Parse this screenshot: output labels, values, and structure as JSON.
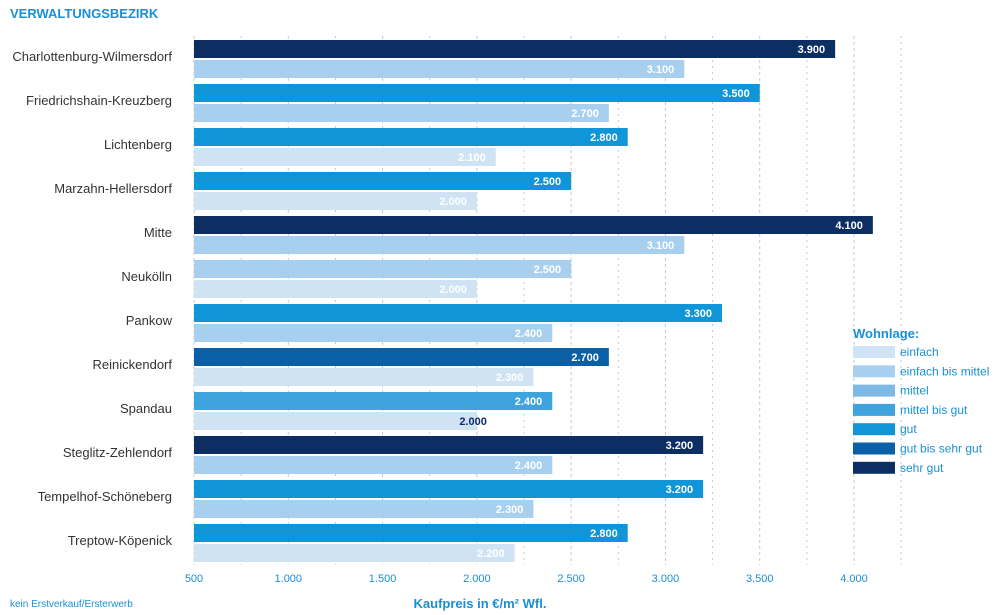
{
  "header": "VERWALTUNGSBEZIRK",
  "footnote": "kein Erstverkauf/Ersterwerb",
  "chart_data": {
    "type": "bar",
    "orientation": "horizontal",
    "title": "",
    "ylabel": "VERWALTUNGSBEZIRK",
    "xlabel": "Kaufpreis in €/m² Wfl.",
    "xlim": [
      500,
      4000
    ],
    "xticks": [
      "500",
      "1.000",
      "1.500",
      "2.000",
      "2.500",
      "3.000",
      "3.500",
      "4.000"
    ],
    "grid": true,
    "legend_position": "right",
    "categories": [
      "Charlottenburg-Wilmersdorf",
      "Friedrichshain-Kreuzberg",
      "Lichtenberg",
      "Marzahn-Hellersdorf",
      "Mitte",
      "Neukölln",
      "Pankow",
      "Reinickendorf",
      "Spandau",
      "Steglitz-Zehlendorf",
      "Tempelhof-Schöneberg",
      "Treptow-Köpenick"
    ],
    "series": [
      {
        "name": "upper bar",
        "values": [
          3900,
          3500,
          2800,
          2500,
          4100,
          2500,
          3300,
          2700,
          2400,
          3200,
          3200,
          2800
        ],
        "labels": [
          "3.900",
          "3.500",
          "2.800",
          "2.500",
          "4.100",
          "2.500",
          "3.300",
          "2.700",
          "2.400",
          "3.200",
          "3.200",
          "2.800"
        ],
        "wohnlage": [
          "sehr gut",
          "gut",
          "gut",
          "gut",
          "sehr gut",
          "einfach bis mittel",
          "gut",
          "gut bis sehr gut",
          "mittel bis gut",
          "sehr gut",
          "gut",
          "gut"
        ]
      },
      {
        "name": "lower bar",
        "values": [
          3100,
          2700,
          2100,
          2000,
          3100,
          2000,
          2400,
          2300,
          2000,
          2400,
          2300,
          2200
        ],
        "labels": [
          "3.100",
          "2.700",
          "2.100",
          "2.000",
          "3.100",
          "2.000",
          "2.400",
          "2.300",
          "2.000",
          "2.400",
          "2.300",
          "2.200"
        ],
        "wohnlage": [
          "einfach bis mittel",
          "einfach bis mittel",
          "einfach",
          "einfach",
          "einfach bis mittel",
          "einfach",
          "einfach bis mittel",
          "einfach",
          "einfach",
          "einfach bis mittel",
          "einfach bis mittel",
          "einfach"
        ]
      }
    ],
    "legend": {
      "title": "Wohnlage:",
      "items": [
        {
          "label": "einfach",
          "color": "#cfe3f4"
        },
        {
          "label": "einfach bis mittel",
          "color": "#a8d0ee"
        },
        {
          "label": "mittel",
          "color": "#7dbbe6"
        },
        {
          "label": "mittel bis gut",
          "color": "#3fa3dd"
        },
        {
          "label": "gut",
          "color": "#0f95d8"
        },
        {
          "label": "gut bis sehr gut",
          "color": "#0a5fa6"
        },
        {
          "label": "sehr gut",
          "color": "#0c2e63"
        }
      ]
    }
  }
}
